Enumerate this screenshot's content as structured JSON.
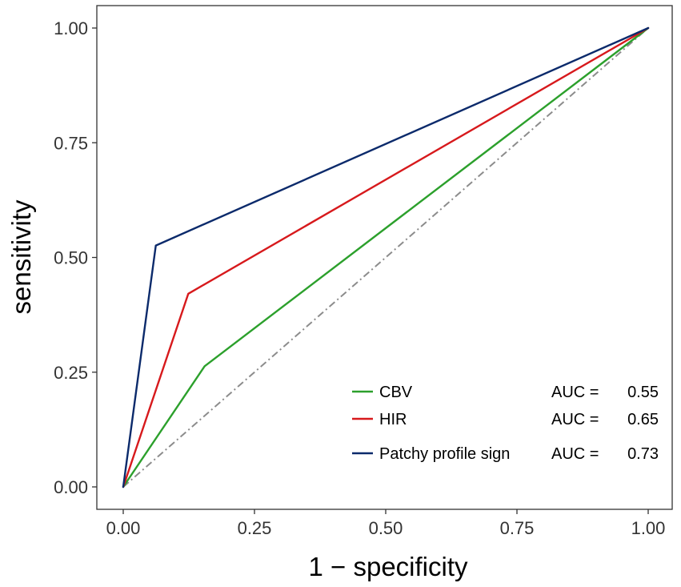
{
  "chart_data": {
    "type": "line",
    "xlabel": "1 − specificity",
    "ylabel": "sensitivity",
    "xlim": [
      0,
      1
    ],
    "ylim": [
      0,
      1
    ],
    "x_ticks": [
      {
        "value": 0,
        "label": "0.00"
      },
      {
        "value": 0.25,
        "label": "0.25"
      },
      {
        "value": 0.5,
        "label": "0.50"
      },
      {
        "value": 0.75,
        "label": "0.75"
      },
      {
        "value": 1,
        "label": "1.00"
      }
    ],
    "y_ticks": [
      {
        "value": 0,
        "label": "0.00"
      },
      {
        "value": 0.25,
        "label": "0.25"
      },
      {
        "value": 0.5,
        "label": "0.50"
      },
      {
        "value": 0.75,
        "label": "0.75"
      },
      {
        "value": 1,
        "label": "1.00"
      }
    ],
    "grid": false,
    "legend_position": "bottom-right",
    "reference_line": {
      "x": [
        0,
        1
      ],
      "y": [
        0,
        1
      ],
      "color": "#8c8c8c",
      "style": "dash-dot"
    },
    "series": [
      {
        "name": "CBV",
        "auc_label": "AUC = ",
        "auc": "0.55",
        "color": "#2ca02c",
        "x": [
          0,
          0.155,
          1
        ],
        "y": [
          0,
          0.263,
          1
        ]
      },
      {
        "name": "HIR",
        "auc_label": "AUC = ",
        "auc": "0.65",
        "color": "#d7191c",
        "x": [
          0,
          0.124,
          1
        ],
        "y": [
          0,
          0.421,
          1
        ]
      },
      {
        "name": "Patchy profile sign",
        "auc_label": "AUC = ",
        "auc": "0.73",
        "color": "#0b2a6b",
        "x": [
          0,
          0.062,
          1
        ],
        "y": [
          0,
          0.526,
          1
        ]
      }
    ]
  }
}
